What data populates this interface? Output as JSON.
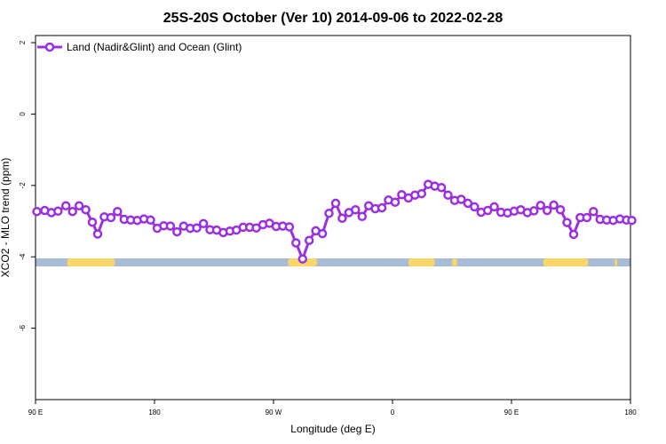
{
  "chart_data": {
    "type": "line",
    "title": "25S-20S October (Ver 10)   2014-09-06 to 2022-02-28",
    "xlabel": "Longitude (deg E)",
    "ylabel": "XCO2 - MLO trend (ppm)",
    "xlim": [
      90,
      540
    ],
    "ylim": [
      -8,
      2.2
    ],
    "x_ticks": [
      {
        "value": 90,
        "label": "90 E"
      },
      {
        "value": 180,
        "label": "180"
      },
      {
        "value": 270,
        "label": "90 W"
      },
      {
        "value": 360,
        "label": "0"
      },
      {
        "value": 450,
        "label": "90 E"
      },
      {
        "value": 540,
        "label": "180"
      }
    ],
    "y_ticks": [
      {
        "value": 2,
        "label": "2"
      },
      {
        "value": 0,
        "label": "0"
      },
      {
        "value": -2,
        "label": "-2"
      },
      {
        "value": -4,
        "label": "-4"
      },
      {
        "value": -6,
        "label": "-6"
      }
    ],
    "legend_position": "top-left",
    "grid": false,
    "series": [
      {
        "name": "Land (Nadir&Glint) and Ocean (Glint)",
        "color": "#9b30e0",
        "x": [
          91,
          97,
          102,
          107,
          113,
          118,
          123,
          128,
          133,
          137,
          142,
          147,
          152,
          157,
          162,
          167,
          172,
          177,
          182,
          187,
          192,
          197,
          202,
          207,
          212,
          217,
          222,
          227,
          232,
          237,
          242,
          247,
          252,
          257,
          262,
          267,
          272,
          277,
          282,
          287,
          292,
          297,
          302,
          307,
          312,
          317,
          322,
          327,
          332,
          337,
          342,
          347,
          352,
          357,
          362,
          367,
          372,
          377,
          382,
          387,
          392,
          397,
          402,
          407,
          412,
          417,
          422,
          427,
          432,
          437,
          442,
          447,
          452,
          457,
          462,
          467,
          472,
          477,
          482,
          487,
          492,
          497,
          502,
          507,
          512,
          517,
          522,
          527,
          532,
          537,
          541
        ],
        "y": [
          -2.73,
          -2.7,
          -2.76,
          -2.72,
          -2.57,
          -2.73,
          -2.57,
          -2.68,
          -3.03,
          -3.36,
          -2.88,
          -2.9,
          -2.73,
          -2.95,
          -2.97,
          -2.98,
          -2.94,
          -2.97,
          -3.2,
          -3.13,
          -3.14,
          -3.3,
          -3.14,
          -3.2,
          -3.19,
          -3.07,
          -3.24,
          -3.25,
          -3.32,
          -3.28,
          -3.25,
          -3.17,
          -3.17,
          -3.19,
          -3.1,
          -3.06,
          -3.15,
          -3.14,
          -3.16,
          -3.61,
          -4.06,
          -3.54,
          -3.27,
          -3.35,
          -2.78,
          -2.5,
          -2.92,
          -2.76,
          -2.68,
          -2.87,
          -2.57,
          -2.65,
          -2.63,
          -2.41,
          -2.47,
          -2.26,
          -2.35,
          -2.27,
          -2.23,
          -1.97,
          -2.02,
          -2.06,
          -2.27,
          -2.42,
          -2.39,
          -2.5,
          -2.6,
          -2.75,
          -2.7,
          -2.6,
          -2.75,
          -2.77,
          -2.72,
          -2.68,
          -2.76,
          -2.71,
          -2.56,
          -2.7,
          -2.55,
          -2.68,
          -3.04,
          -3.37,
          -2.9,
          -2.9,
          -2.73,
          -2.95,
          -2.97,
          -2.98,
          -2.94,
          -2.97,
          -2.98
        ]
      }
    ],
    "surface_band": {
      "ocean_color": "#a8bcd8",
      "land_color": "#f8d66a",
      "land_ranges": [
        [
          114,
          129
        ],
        [
          114,
          150
        ],
        [
          281,
          303
        ],
        [
          372,
          392
        ],
        [
          405,
          409
        ],
        [
          474,
          508
        ],
        [
          528,
          530
        ]
      ]
    }
  }
}
